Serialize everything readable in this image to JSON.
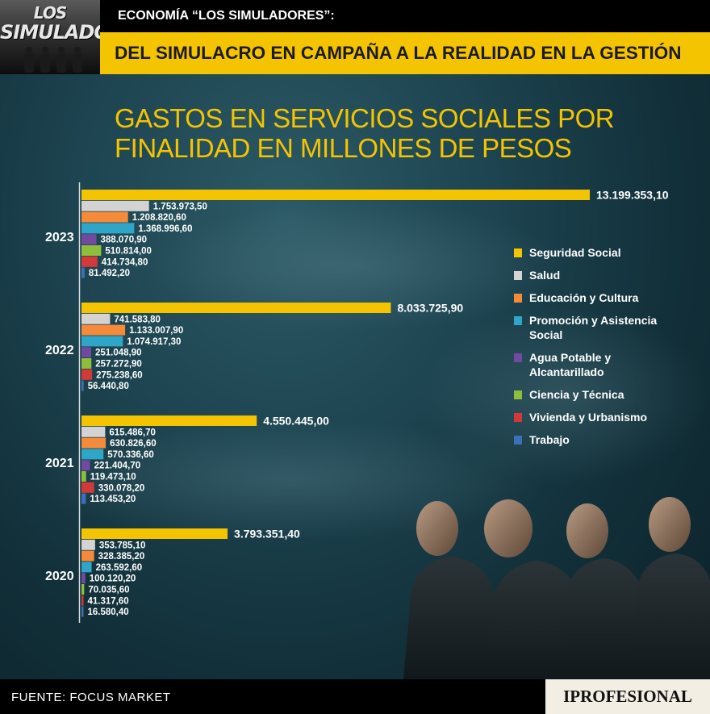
{
  "logo": {
    "line1": "LOS",
    "line2": "SIMULADORES"
  },
  "header": {
    "kicker": "ECONOMÍA “LOS SIMULADORES”:",
    "title": "DEL SIMULACRO EN CAMPAÑA A LA REALIDAD EN LA GESTIÓN"
  },
  "footer": {
    "source": "FUENTE: FOCUS MARKET",
    "brand": "IPROFESIONAL"
  },
  "colors": {
    "accent": "#f5c400",
    "series": [
      "#f5c400",
      "#d3d3d3",
      "#f58a3a",
      "#2fa6c8",
      "#6f4a9e",
      "#8dbf3c",
      "#d23a3a",
      "#3b6fb6"
    ]
  },
  "chart_data": {
    "type": "bar",
    "orientation": "horizontal",
    "title": [
      "GASTOS EN SERVICIOS SOCIALES POR",
      "FINALIDAD EN MILLONES DE PESOS"
    ],
    "categories": [
      "2023",
      "2022",
      "2021",
      "2020"
    ],
    "series": [
      {
        "name": "Seguridad Social",
        "values": [
          13199353.1,
          8033725.9,
          4550445.0,
          3793351.4
        ],
        "labels": [
          "13.199.353,10",
          "8.033.725,90",
          "4.550.445,00",
          "3.793.351,40"
        ]
      },
      {
        "name": "Salud",
        "values": [
          1753973.5,
          741583.8,
          615486.7,
          353785.1
        ],
        "labels": [
          "1.753.973,50",
          "741.583,80",
          "615.486,70",
          "353.785,10"
        ]
      },
      {
        "name": "Educación y Cultura",
        "values": [
          1208820.6,
          1133007.9,
          630826.6,
          328385.2
        ],
        "labels": [
          "1.208.820,60",
          "1.133.007,90",
          "630.826,60",
          "328.385,20"
        ]
      },
      {
        "name": "Promoción y Asistencia Social",
        "values": [
          1368996.6,
          1074917.3,
          570336.6,
          263592.6
        ],
        "labels": [
          "1.368.996,60",
          "1.074.917,30",
          "570.336,60",
          "263.592,60"
        ]
      },
      {
        "name": "Agua Potable y Alcantarillado",
        "values": [
          388070.9,
          251048.9,
          221404.7,
          100120.2
        ],
        "labels": [
          "388.070,90",
          "251.048,90",
          "221.404,70",
          "100.120,20"
        ]
      },
      {
        "name": "Ciencia y Técnica",
        "values": [
          510814.0,
          257272.9,
          119473.1,
          70035.6
        ],
        "labels": [
          "510.814,00",
          "257.272,90",
          "119.473,10",
          "70.035,60"
        ]
      },
      {
        "name": "Vivienda y Urbanismo",
        "values": [
          414734.8,
          275238.6,
          330078.2,
          41317.6
        ],
        "labels": [
          "414.734,80",
          "275.238,60",
          "330.078,20",
          "41.317,60"
        ]
      },
      {
        "name": "Trabajo",
        "values": [
          81492.2,
          56440.8,
          113453.2,
          16580.4
        ],
        "labels": [
          "81.492,20",
          "56.440,80",
          "113.453,20",
          "16.580,40"
        ]
      }
    ],
    "legend_position": "right",
    "legend_lines": [
      [
        "Seguridad Social"
      ],
      [
        "Salud"
      ],
      [
        "Educación y Cultura"
      ],
      [
        "Promoción y Asistencia",
        "Social"
      ],
      [
        "Agua Potable y",
        "Alcantarillado"
      ],
      [
        "Ciencia y Técnica"
      ],
      [
        "Vivienda y Urbanismo"
      ],
      [
        "Trabajo"
      ]
    ],
    "grid": false
  }
}
